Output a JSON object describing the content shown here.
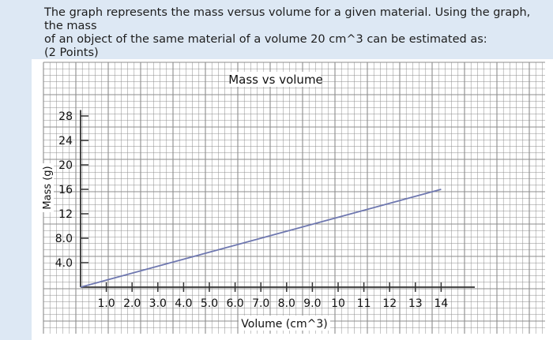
{
  "question": {
    "text_line1": "The graph represents the mass versus volume for a given material. Using the graph, the mass",
    "text_line2": "of an object of the same material of a volume 20 cm^3 can be estimated as:",
    "points": "(2 Points)"
  },
  "colors": {
    "grid": "#8c8c8c",
    "line": "#6f78b0",
    "axis": "#333333"
  },
  "chart_data": {
    "type": "line",
    "title": "Mass vs volume",
    "xlabel": "Volume (cm^3)",
    "ylabel": "Mass (g)",
    "x_ticks": [
      "1.0",
      "2.0",
      "3.0",
      "4.0",
      "5.0",
      "6.0",
      "7.0",
      "8.0",
      "9.0",
      "10",
      "11",
      "12",
      "13",
      "14"
    ],
    "y_ticks": [
      "4.0",
      "8.0",
      "12",
      "16",
      "20",
      "24",
      "28"
    ],
    "x_tick_values": [
      1,
      2,
      3,
      4,
      5,
      6,
      7,
      8,
      9,
      10,
      11,
      12,
      13,
      14
    ],
    "y_tick_values": [
      4,
      8,
      12,
      16,
      20,
      24,
      28
    ],
    "xlim": [
      0,
      15
    ],
    "ylim": [
      0,
      30
    ],
    "grid": true,
    "series": [
      {
        "x": [
          0,
          14
        ],
        "y": [
          0,
          16
        ]
      }
    ]
  }
}
